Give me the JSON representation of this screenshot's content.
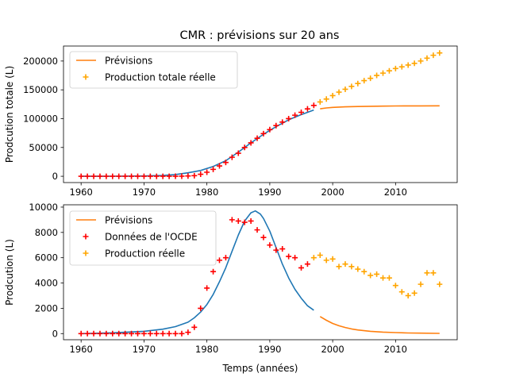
{
  "figure_title": "CMR : prévisions sur 20 ans",
  "colors": {
    "model": "#1f77b4",
    "forecast": "#ff7f0e",
    "ocde": "#ff0000",
    "real": "#ffa500"
  },
  "chart_data": [
    {
      "type": "line",
      "title": "CMR : prévisions sur 20 ans",
      "xlabel": "",
      "ylabel": "Prodcution totale (L)",
      "xlim": [
        1957.2,
        2019.8
      ],
      "ylim": [
        -10900,
        226000
      ],
      "xticks": [
        1960,
        1970,
        1980,
        1990,
        2000,
        2010
      ],
      "yticks": [
        0,
        50000,
        100000,
        150000,
        200000
      ],
      "ytick_labels": [
        "0",
        "50000",
        "100000",
        "150000",
        "200000"
      ],
      "grid": false,
      "legend_position": "top-left",
      "legend": [
        "Prévisions",
        "Production totale réelle"
      ],
      "series": [
        {
          "kind": "model-curve",
          "x": [
            1960,
            1965,
            1970,
            1973,
            1975,
            1977,
            1979,
            1981,
            1983,
            1985,
            1987,
            1989,
            1991,
            1993,
            1995,
            1997
          ],
          "y": [
            0,
            100,
            500,
            1500,
            3000,
            6000,
            10000,
            17000,
            27000,
            42000,
            58000,
            73000,
            86000,
            98000,
            107000,
            115000
          ]
        },
        {
          "name": "Prévisions",
          "kind": "forecast-line",
          "x": [
            1998,
            1999,
            2000,
            2002,
            2004,
            2006,
            2008,
            2010,
            2012,
            2014,
            2017
          ],
          "y": [
            117000,
            118500,
            119500,
            120500,
            121000,
            121500,
            121800,
            122000,
            122100,
            122200,
            122300
          ]
        },
        {
          "kind": "ocde-markers",
          "x": [
            1960,
            1961,
            1962,
            1963,
            1964,
            1965,
            1966,
            1967,
            1968,
            1969,
            1970,
            1971,
            1972,
            1973,
            1974,
            1975,
            1976,
            1977,
            1978,
            1979,
            1980,
            1981,
            1982,
            1983,
            1984,
            1985,
            1986,
            1987,
            1988,
            1989,
            1990,
            1991,
            1992,
            1993,
            1994,
            1995,
            1996,
            1997
          ],
          "y": [
            0,
            0,
            0,
            0,
            0,
            0,
            0,
            0,
            0,
            0,
            0,
            0,
            0,
            0,
            0,
            100,
            200,
            500,
            1000,
            3500,
            7000,
            12000,
            18000,
            24000,
            33000,
            40000,
            50000,
            58000,
            66000,
            74000,
            81000,
            88000,
            94000,
            100000,
            106000,
            111000,
            117000,
            123000
          ]
        },
        {
          "name": "Production totale réelle",
          "kind": "real-markers",
          "x": [
            1998,
            1999,
            2000,
            2001,
            2002,
            2003,
            2004,
            2005,
            2006,
            2007,
            2008,
            2009,
            2010,
            2011,
            2012,
            2013,
            2014,
            2015,
            2016,
            2017
          ],
          "y": [
            129000,
            134000,
            140000,
            146000,
            151000,
            156000,
            161000,
            166000,
            170000,
            175000,
            179000,
            183000,
            187000,
            190000,
            193000,
            196000,
            200000,
            205000,
            210000,
            214000
          ]
        }
      ]
    },
    {
      "type": "line",
      "title": "",
      "xlabel": "Temps (années)",
      "ylabel": "Prodcution (L)",
      "xlim": [
        1957.2,
        2019.8
      ],
      "ylim": [
        -485,
        10185
      ],
      "xticks": [
        1960,
        1970,
        1980,
        1990,
        2000,
        2010
      ],
      "yticks": [
        0,
        2000,
        4000,
        6000,
        8000,
        10000
      ],
      "ytick_labels": [
        "0",
        "2000",
        "4000",
        "6000",
        "8000",
        "10000"
      ],
      "grid": false,
      "legend_position": "top-left",
      "legend": [
        "Prévisions",
        "Données de l'OCDE",
        "Production réelle"
      ],
      "series": [
        {
          "kind": "model-curve",
          "x": [
            1960,
            1965,
            1970,
            1973,
            1975,
            1977,
            1978,
            1979,
            1980,
            1981,
            1982,
            1983,
            1984,
            1985,
            1986,
            1987,
            1987.7,
            1988.5,
            1989,
            1990,
            1991,
            1992,
            1993,
            1994,
            1995,
            1996,
            1997
          ],
          "y": [
            0,
            60,
            180,
            350,
            550,
            900,
            1250,
            1700,
            2300,
            3100,
            4100,
            5200,
            6500,
            7800,
            8900,
            9550,
            9700,
            9450,
            9100,
            8100,
            6800,
            5500,
            4400,
            3500,
            2800,
            2200,
            1850
          ]
        },
        {
          "name": "Prévisions",
          "kind": "forecast-line",
          "x": [
            1998,
            1999,
            2000,
            2001,
            2002,
            2003,
            2004,
            2005,
            2006,
            2008,
            2010,
            2012,
            2014,
            2017
          ],
          "y": [
            1350,
            1050,
            800,
            620,
            480,
            370,
            290,
            230,
            180,
            120,
            80,
            50,
            35,
            20
          ]
        },
        {
          "name": "Données de l'OCDE",
          "kind": "ocde-markers",
          "x": [
            1960,
            1961,
            1962,
            1963,
            1964,
            1965,
            1966,
            1967,
            1968,
            1969,
            1970,
            1971,
            1972,
            1973,
            1974,
            1975,
            1976,
            1977,
            1978,
            1979,
            1980,
            1981,
            1982,
            1983,
            1984,
            1985,
            1986,
            1987,
            1988,
            1989,
            1990,
            1991,
            1992,
            1993,
            1994,
            1995,
            1996
          ],
          "y": [
            0,
            0,
            0,
            0,
            0,
            0,
            0,
            0,
            0,
            0,
            0,
            0,
            0,
            0,
            0,
            0,
            0,
            100,
            500,
            2000,
            3600,
            4900,
            5800,
            6000,
            9000,
            8900,
            8800,
            8900,
            8200,
            7600,
            7000,
            6600,
            6700,
            6100,
            6000,
            5200,
            5500
          ]
        },
        {
          "name": "Production réelle",
          "kind": "real-markers",
          "x": [
            1997,
            1998,
            1999,
            2000,
            2001,
            2002,
            2003,
            2004,
            2005,
            2006,
            2007,
            2008,
            2009,
            2010,
            2011,
            2012,
            2013,
            2014,
            2015,
            2016,
            2017
          ],
          "y": [
            6000,
            6200,
            5800,
            5900,
            5300,
            5500,
            5300,
            5100,
            4900,
            4600,
            4700,
            4400,
            4400,
            3800,
            3300,
            3000,
            3200,
            3900,
            4800,
            4800,
            3900
          ]
        }
      ]
    }
  ]
}
